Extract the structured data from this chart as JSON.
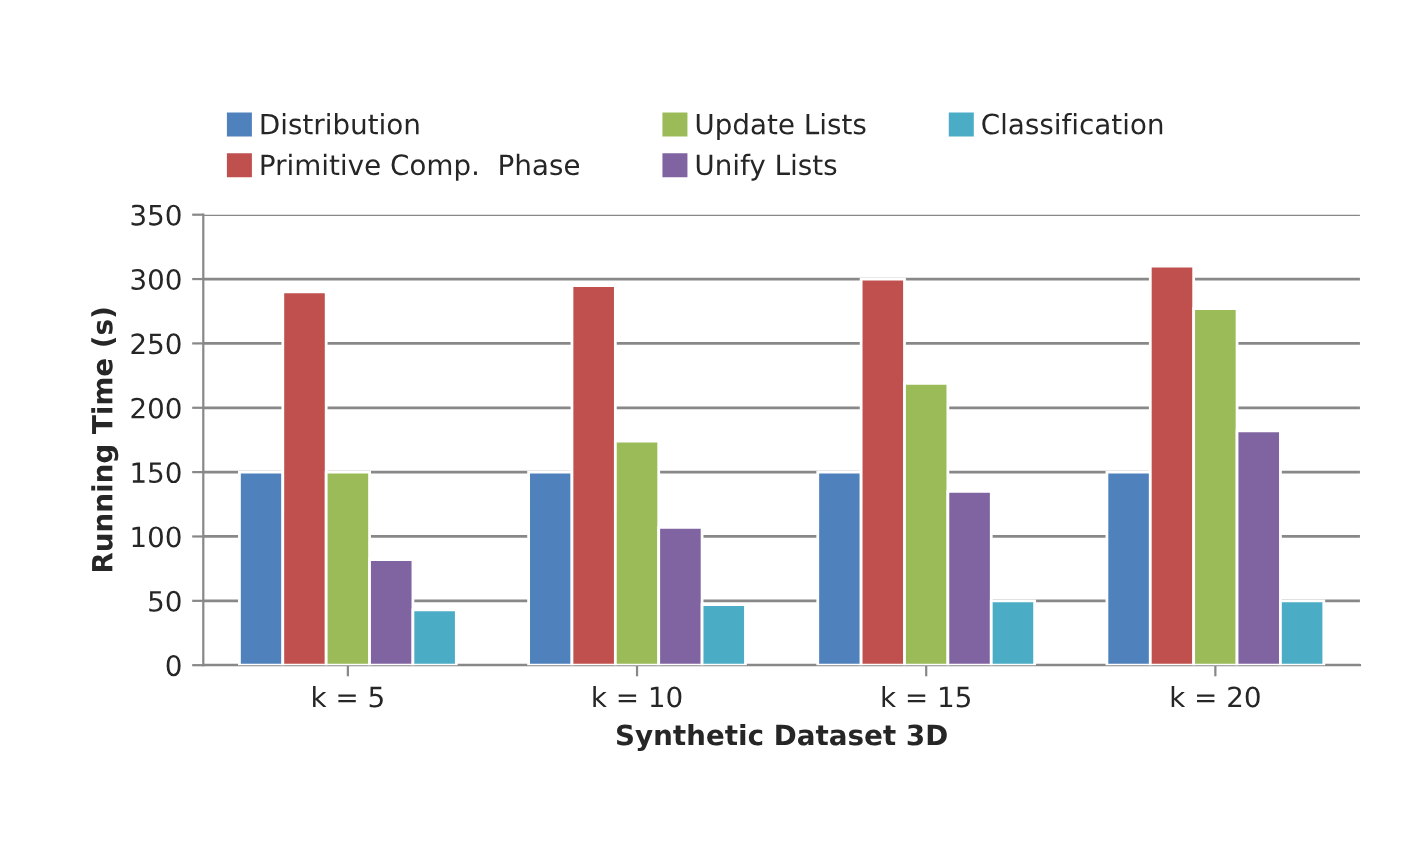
{
  "chart_data": {
    "type": "bar",
    "xlabel": "Synthetic Dataset 3D",
    "ylabel": "Running Time (s)",
    "categories": [
      "k = 5",
      "k = 10",
      "k = 15",
      "k = 20"
    ],
    "series": [
      {
        "name": "Distribution",
        "color": "#4f81bd",
        "values": [
          150,
          150,
          150,
          150
        ]
      },
      {
        "name": "Primitive Comp.  Phase",
        "color": "#c0504d",
        "values": [
          290,
          295,
          300,
          310
        ]
      },
      {
        "name": "Update Lists",
        "color": "#9bbb59",
        "values": [
          150,
          174,
          219,
          277
        ]
      },
      {
        "name": "Unify Lists",
        "color": "#8064a2",
        "values": [
          82,
          107,
          135,
          182
        ]
      },
      {
        "name": "Classification",
        "color": "#4bacc6",
        "values": [
          43,
          47,
          50,
          50
        ]
      }
    ],
    "ylim": [
      0,
      350
    ],
    "yticks": [
      0,
      50,
      100,
      150,
      200,
      250,
      300,
      350
    ],
    "grid": "y",
    "legend": "top"
  }
}
